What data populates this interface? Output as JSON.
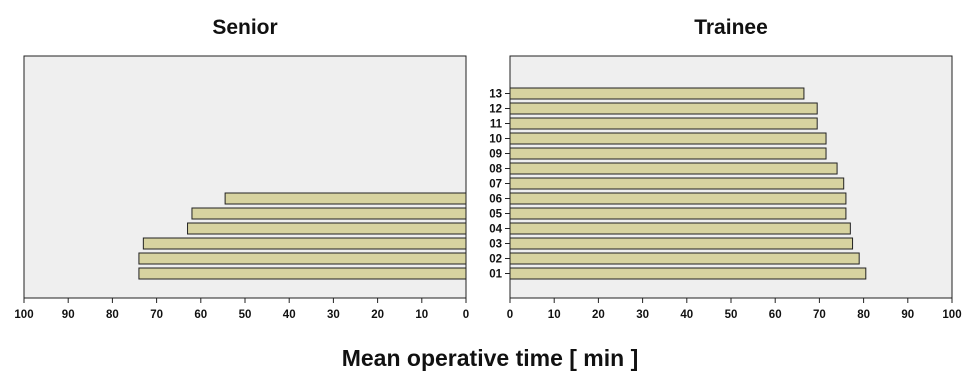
{
  "chart_data": {
    "type": "bar",
    "orientation": "horizontal",
    "xlabel": "Mean operative time [ min ]",
    "xlim": [
      0,
      100
    ],
    "x_ticks": [
      0,
      10,
      20,
      30,
      40,
      50,
      60,
      70,
      80,
      90,
      100
    ],
    "categories": [
      "01",
      "02",
      "03",
      "04",
      "05",
      "06",
      "07",
      "08",
      "09",
      "10",
      "11",
      "12",
      "13"
    ],
    "bar_color": "#d7d3a0",
    "plot_background": "#efefef",
    "panels": [
      {
        "title": "Senior",
        "direction": "reversed",
        "values": [
          74,
          74,
          73,
          63,
          62,
          54.5,
          null,
          null,
          null,
          null,
          null,
          null,
          null
        ]
      },
      {
        "title": "Trainee",
        "direction": "normal",
        "values": [
          80.5,
          79,
          77.5,
          77,
          76,
          76,
          75.5,
          74,
          71.5,
          71.5,
          69.5,
          69.5,
          66.5
        ]
      }
    ]
  }
}
